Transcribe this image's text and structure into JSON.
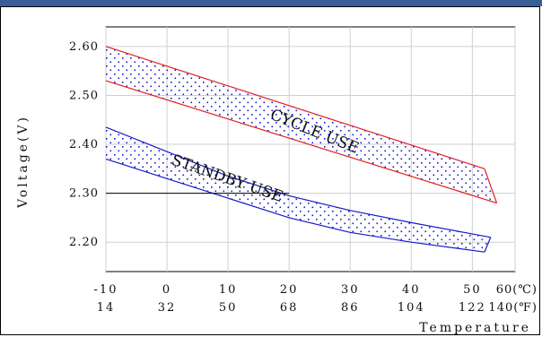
{
  "chart_data": {
    "type": "area",
    "ylabel": "Voltage(V)",
    "xlabel": "Temperature",
    "ylim": [
      2.14,
      2.64
    ],
    "xlim": [
      -10,
      57
    ],
    "grid": true,
    "y_ticks": [
      "2.60",
      "2.50",
      "2.40",
      "2.30",
      "2.20"
    ],
    "y_tick_values": [
      2.6,
      2.5,
      2.4,
      2.3,
      2.2
    ],
    "x_ticks_c": [
      "-10",
      "0",
      "10",
      "20",
      "30",
      "40",
      "50"
    ],
    "x_ticks_c_values": [
      -10,
      0,
      10,
      20,
      30,
      40,
      50
    ],
    "x_tick_c_last": "60(℃)",
    "x_ticks_f": [
      "14",
      "32",
      "50",
      "68",
      "86",
      "104",
      "122"
    ],
    "x_tick_f_last": "140(℉)",
    "reference_line": {
      "y": 2.3,
      "x_from": -10,
      "x_to": 20
    },
    "series": [
      {
        "name": "CYCLE USE",
        "color": "#e02020",
        "fill_dot_color": "#1a1acc",
        "upper": [
          [
            -10,
            2.6
          ],
          [
            52,
            2.35
          ]
        ],
        "lower": [
          [
            -10,
            2.53
          ],
          [
            54,
            2.28
          ]
        ],
        "right_edge": [
          [
            52,
            2.35
          ],
          [
            54,
            2.28
          ]
        ]
      },
      {
        "name": "STANDBY USE",
        "color": "#1a1acc",
        "fill_dot_color": "#1a1acc",
        "upper": [
          [
            -10,
            2.435
          ],
          [
            0,
            2.385
          ],
          [
            10,
            2.335
          ],
          [
            20,
            2.295
          ],
          [
            30,
            2.265
          ],
          [
            40,
            2.24
          ],
          [
            53,
            2.21
          ]
        ],
        "lower": [
          [
            -10,
            2.37
          ],
          [
            0,
            2.33
          ],
          [
            10,
            2.29
          ],
          [
            20,
            2.25
          ],
          [
            30,
            2.22
          ],
          [
            40,
            2.2
          ],
          [
            52,
            2.18
          ]
        ]
      }
    ]
  },
  "colors": {
    "header": "#3a5f96",
    "grid": "#cfcfcf"
  }
}
